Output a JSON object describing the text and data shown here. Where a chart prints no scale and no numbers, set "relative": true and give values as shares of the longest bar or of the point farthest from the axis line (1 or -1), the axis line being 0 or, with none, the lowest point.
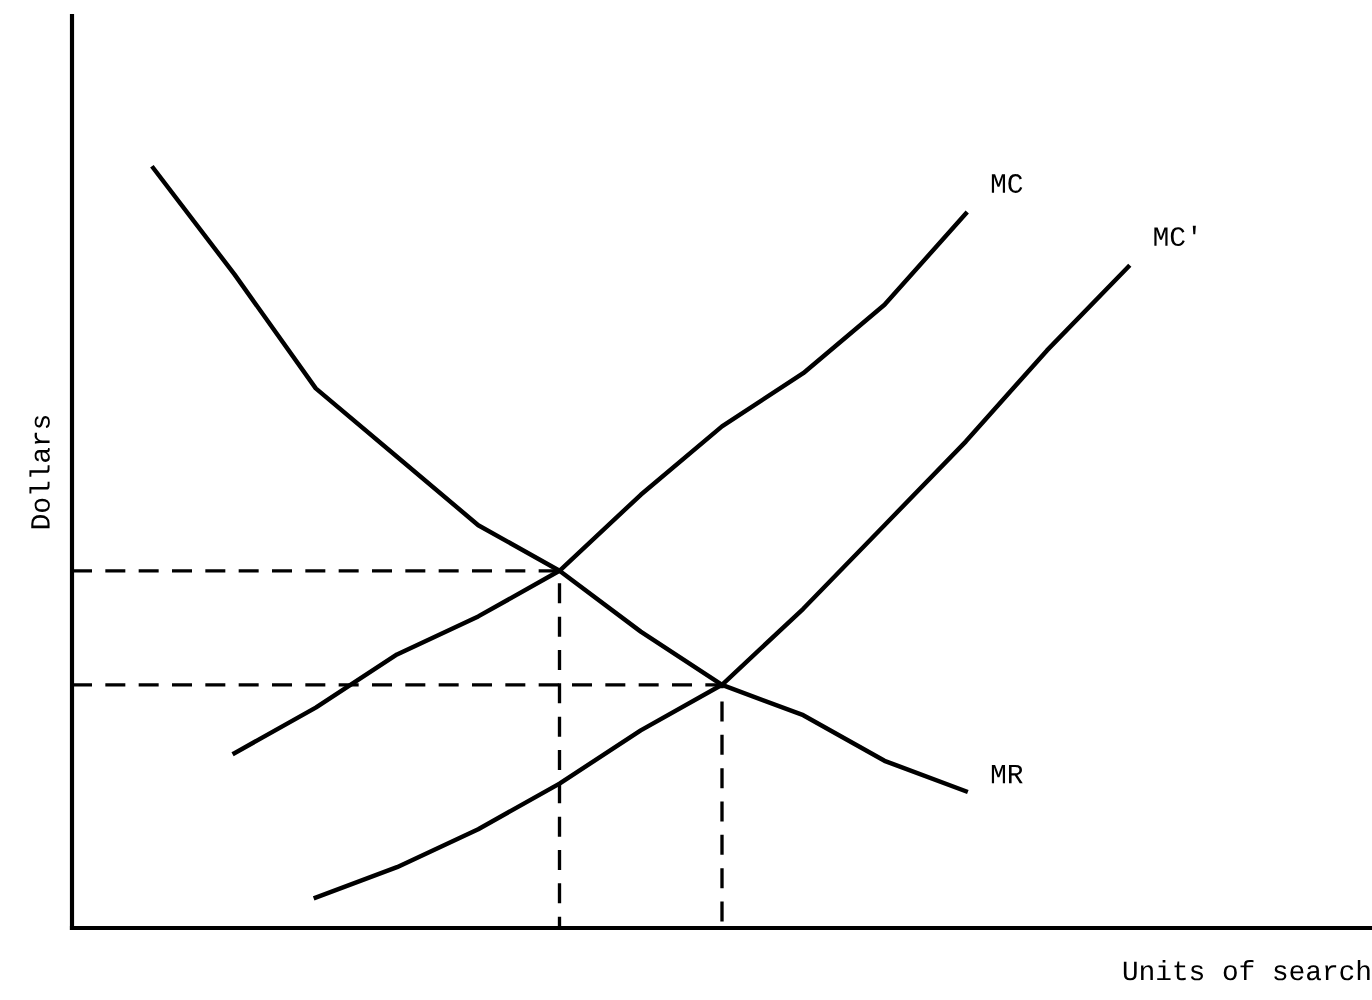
{
  "chart_data": {
    "type": "line",
    "relative": true,
    "xlabel": "Units of search",
    "ylabel": "Dollars",
    "legend": false,
    "marker": "none",
    "line_style": "solid",
    "categories": [
      null,
      null,
      null,
      null,
      null,
      null,
      null,
      null,
      null,
      null,
      null,
      null,
      null,
      null,
      null,
      null
    ],
    "series": [
      {
        "name": "MR",
        "color": "#000000",
        "values": [
          null,
          1.0,
          0.86,
          0.71,
          0.62,
          0.53,
          0.47,
          0.39,
          0.32,
          0.28,
          0.22,
          0.18,
          null,
          null,
          null,
          null
        ]
      },
      {
        "name": "MC",
        "color": "#000000",
        "values": [
          null,
          null,
          0.23,
          0.29,
          0.36,
          0.41,
          0.47,
          0.57,
          0.66,
          0.73,
          0.82,
          0.94,
          null,
          null,
          null,
          null
        ]
      },
      {
        "name": "MC'",
        "color": "#000000",
        "values": [
          null,
          null,
          null,
          0.04,
          0.08,
          0.13,
          0.19,
          0.26,
          0.32,
          0.42,
          0.53,
          0.64,
          0.76,
          0.87,
          null,
          null
        ]
      },
      {
        "type": "step",
        "color": "#000000",
        "line_style": "dashed",
        "values": [
          0.47,
          0.47,
          0.47,
          0.47,
          0.47,
          0.47,
          0.47,
          0,
          null,
          null,
          null,
          null,
          null,
          null,
          null,
          null
        ]
      },
      {
        "type": "step",
        "color": "#000000",
        "line_style": "dashed",
        "values": [
          0.32,
          0.32,
          0.32,
          0.32,
          0.32,
          0.32,
          0.32,
          0.32,
          0.32,
          0,
          null,
          null,
          null,
          null,
          null,
          null
        ]
      }
    ]
  }
}
